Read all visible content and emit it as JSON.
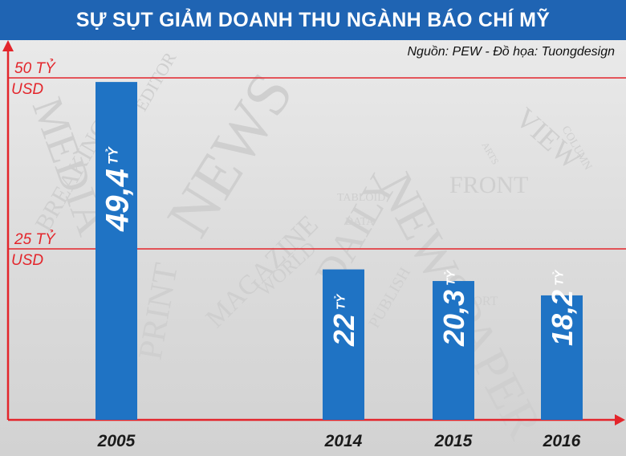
{
  "title": "SỰ SỤT GIẢM DOANH THU NGÀNH BÁO CHÍ MỸ",
  "source": "Nguồn: PEW - Đồ họa: Tuongdesign",
  "background_words": [
    "MEDIA",
    "NEWS",
    "NEWSPAPER",
    "VIEW",
    "FRONT",
    "MAGAZINE",
    "WORLD",
    "PRINT",
    "DAILY",
    "BREAKING",
    "TABLOID",
    "DATA",
    "ARTS",
    "COLUMN",
    "PUBLISH",
    "EDITOR",
    "REPORT"
  ],
  "colors": {
    "title_bg": "#1f64b3",
    "bar": "#1f73c4",
    "line": "#e3252b",
    "label": "#ffffff"
  },
  "chart_data": {
    "type": "bar",
    "categories": [
      "2005",
      "2014",
      "2015",
      "2016"
    ],
    "values": [
      49.4,
      22,
      20.3,
      18.2
    ],
    "value_labels": [
      "49,4",
      "22",
      "20,3",
      "18,2"
    ],
    "value_unit": "TỶ",
    "gridlines": [
      {
        "value": 50,
        "label_line1": "50 TỶ",
        "label_line2": "USD"
      },
      {
        "value": 25,
        "label_line1": "25 TỶ",
        "label_line2": "USD"
      }
    ],
    "ylim": [
      0,
      50
    ],
    "xlabel": "",
    "ylabel": ""
  }
}
